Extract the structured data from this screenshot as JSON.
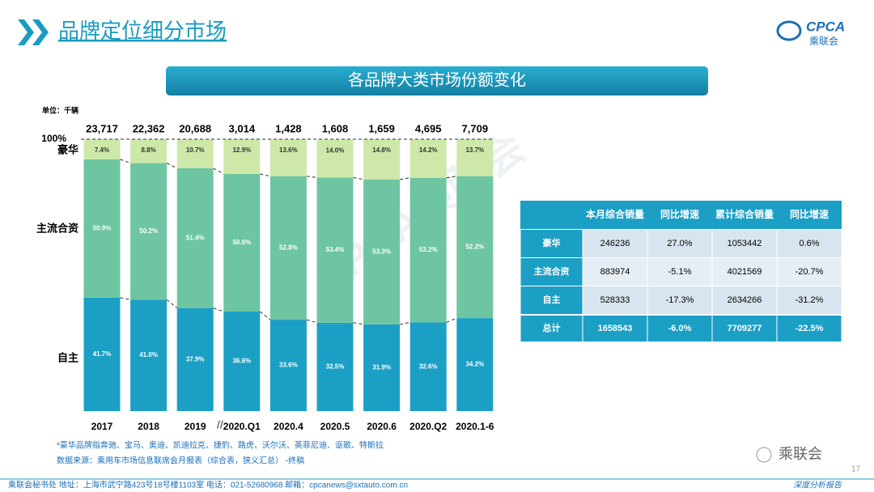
{
  "header": {
    "title": "品牌定位细分市场",
    "logo": "CPCA",
    "logo_sub": "乘联会"
  },
  "banner": "各品牌大类市场份额变化",
  "chart_data": {
    "type": "stacked_bar",
    "unit": "单位：千辆",
    "categories": [
      "2017",
      "2018",
      "2019",
      "2020.Q1",
      "2020.4",
      "2020.5",
      "2020.6",
      "2020.Q2",
      "2020.1-6"
    ],
    "totals": {
      "values": [
        23717,
        22362,
        20688,
        3014,
        1428,
        1608,
        1659,
        4695,
        7709
      ],
      "value_labels": [
        "23,717",
        "22,362",
        "20,688",
        "3,014",
        "1,428",
        "1,608",
        "1,659",
        "4,695",
        "7,709"
      ]
    },
    "series": [
      {
        "name": "自主",
        "color": "#1c9fc5",
        "values": [
          41.7,
          41.0,
          37.9,
          36.6,
          33.6,
          32.5,
          31.9,
          32.6,
          34.2
        ],
        "value_labels": [
          "41.7%",
          "41.0%",
          "37.9%",
          "36.6%",
          "33.6%",
          "32.5%",
          "31.9%",
          "32.6%",
          "34.2%"
        ]
      },
      {
        "name": "主流合资",
        "color": "#6ec5a2",
        "values": [
          50.9,
          50.2,
          51.4,
          50.6,
          52.8,
          53.4,
          53.3,
          53.2,
          52.2
        ],
        "value_labels": [
          "50.9%",
          "50.2%",
          "51.4%",
          "50.6%",
          "52.8%",
          "53.4%",
          "53.3%",
          "53.2%",
          "52.2%"
        ]
      },
      {
        "name": "豪华",
        "color": "#cde8a9",
        "values": [
          7.4,
          8.8,
          10.7,
          12.9,
          13.6,
          14.0,
          14.8,
          14.2,
          13.7
        ],
        "value_labels": [
          "7.4%",
          "8.8%",
          "10.7%",
          "12.9%",
          "13.6%",
          "14.0%",
          "14.8%",
          "14.2%",
          "13.7%"
        ]
      }
    ],
    "ylim": [
      0,
      100
    ],
    "yticks": [
      {
        "value": 100,
        "label": "100%"
      }
    ],
    "notes": [
      "*豪华品牌指奔驰、宝马、奥迪、凯迪拉克、捷豹、路虎、沃尔沃、英菲尼迪、讴歌、特斯拉",
      "数据来源：乘用车市场信息联席会月报表（综合表，狭义汇总）  -终稿"
    ]
  },
  "watermark": "CPCA乘联会",
  "table": {
    "header": [
      "本月综合销量",
      "同比增速",
      "累计综合销量",
      "同比增速"
    ],
    "rows": [
      [
        "豪华",
        "246236",
        "27.0%",
        "1053442",
        "0.6%"
      ],
      [
        "主流合资",
        "883974",
        "-5.1%",
        "4021569",
        "-20.7%"
      ],
      [
        "自主",
        "528333",
        "-17.3%",
        "2634266",
        "-31.2%"
      ],
      [
        "总计",
        "1658543",
        "-6.0%",
        "7709277",
        "-22.5%"
      ]
    ]
  },
  "footer": {
    "text": "乘联会秘书处   地址：上海市武宁路423号18号楼1103室   电话：021-52680968   邮箱：cpcanews@sxtauto.com.cn",
    "wechat": "乘联会",
    "page": "17",
    "tag": "深度分析报告"
  }
}
